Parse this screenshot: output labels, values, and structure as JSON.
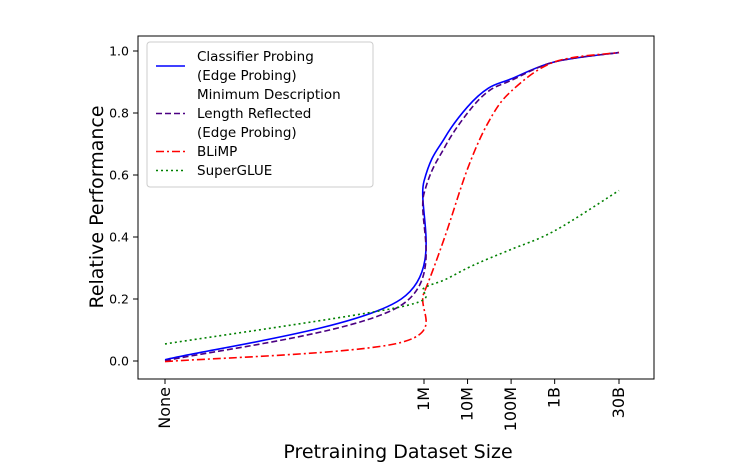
{
  "chart_data": {
    "type": "line",
    "xlabel": "Pretraining Dataset Size",
    "ylabel": "Relative Performance",
    "x_scale": "log",
    "x_ticks": [
      "None",
      "1M",
      "10M",
      "100M",
      "1B",
      "30B"
    ],
    "y_ticks": [
      "0.0",
      "0.2",
      "0.4",
      "0.6",
      "0.8",
      "1.0"
    ],
    "ylim": [
      -0.02,
      1.02
    ],
    "grid": false,
    "legend_position": "top-left",
    "series": [
      {
        "name": "Classifier Probing\n(Edge Probing)",
        "color": "#0000ff",
        "style": "solid",
        "x": [
          "None",
          "300K",
          "1M",
          "3M",
          "10M",
          "30M",
          "100M",
          "1B",
          "30B"
        ],
        "values": [
          0.004,
          0.2,
          0.58,
          0.72,
          0.82,
          0.88,
          0.91,
          0.965,
          0.995
        ]
      },
      {
        "name": "Minimum Description\nLength Reflected\n(Edge Probing)",
        "color": "#4b0082",
        "style": "dashed",
        "x": [
          "None",
          "300K",
          "1M",
          "3M",
          "10M",
          "30M",
          "100M",
          "1B",
          "30B"
        ],
        "values": [
          0.0,
          0.18,
          0.54,
          0.69,
          0.8,
          0.87,
          0.905,
          0.965,
          0.995
        ]
      },
      {
        "name": "BLiMP",
        "color": "#ff0000",
        "style": "dashdot",
        "x": [
          "None",
          "300K",
          "1M",
          "3M",
          "10M",
          "30M",
          "100M",
          "1B",
          "30B"
        ],
        "values": [
          -0.002,
          0.06,
          0.22,
          0.4,
          0.62,
          0.77,
          0.87,
          0.965,
          0.995
        ]
      },
      {
        "name": "SuperGLUE",
        "color": "#008000",
        "style": "dotted",
        "x": [
          "None",
          "300K",
          "1M",
          "3M",
          "10M",
          "30M",
          "100M",
          "1B",
          "30B"
        ],
        "values": [
          0.055,
          0.175,
          0.235,
          0.262,
          0.3,
          0.33,
          0.36,
          0.42,
          0.55
        ]
      }
    ]
  }
}
